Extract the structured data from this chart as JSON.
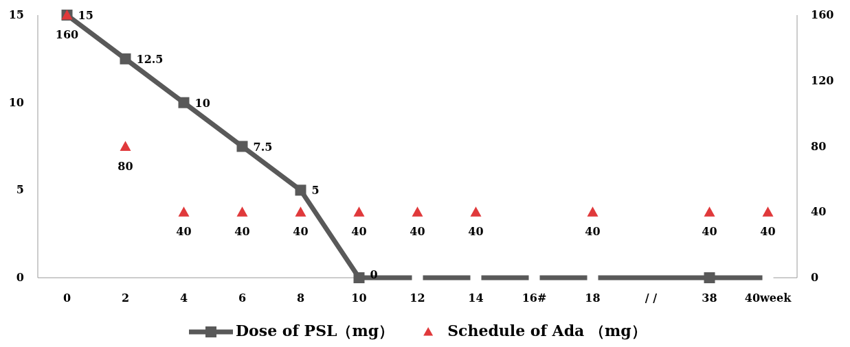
{
  "chart_data": {
    "type": "line",
    "categories": [
      "0",
      "2",
      "4",
      "6",
      "8",
      "10",
      "12",
      "14",
      "16#",
      "18",
      "/ /",
      "38",
      "40week"
    ],
    "ylim": [
      0,
      15
    ],
    "yticks": [
      0,
      5,
      10,
      15
    ],
    "y2lim": [
      0,
      160
    ],
    "y2ticks": [
      0,
      40,
      80,
      120,
      160
    ],
    "grid": false,
    "legend": "bottom",
    "series": [
      {
        "name": "Dose of PSL（mg）",
        "color": "#595959",
        "marker": "square",
        "values": [
          15,
          12.5,
          10,
          7.5,
          5,
          0,
          0,
          0,
          0,
          0,
          0,
          0,
          0
        ],
        "colors": [
          "#595959",
          "#595959",
          "#595959",
          "#595959",
          "#595959",
          "#595959",
          "#ffffff",
          "#ffffff",
          "#ffffff",
          "#ffffff",
          null,
          "#595959",
          "#ffffff"
        ],
        "value_labels": [
          "15",
          "12.5",
          "10",
          "7.5",
          "5",
          "0",
          null,
          null,
          null,
          null,
          null,
          null,
          null
        ]
      },
      {
        "name": "Schedule of Ada （mg）",
        "type": "scatter",
        "axis": "y2",
        "color": "#e0393b",
        "marker": "triangle",
        "values": [
          160,
          80,
          40,
          40,
          40,
          40,
          40,
          40,
          null,
          40,
          null,
          40,
          40
        ],
        "value_labels": [
          "160",
          "80",
          "40",
          "40",
          "40",
          "40",
          "40",
          "40",
          null,
          "40",
          null,
          "40",
          "40"
        ]
      }
    ]
  }
}
